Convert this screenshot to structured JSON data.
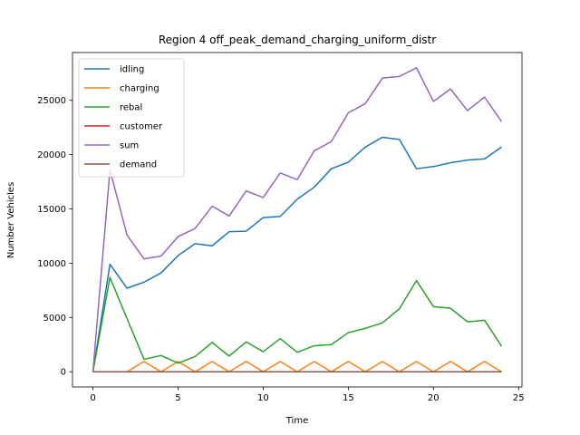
{
  "chart_data": {
    "type": "line",
    "title": "Region 4 off_peak_demand_charging_uniform_distr",
    "xlabel": "Time",
    "ylabel": "Number Vehicles",
    "xlim": [
      -1.2,
      25.2
    ],
    "ylim": [
      -1400,
      29400
    ],
    "xticks": [
      0,
      5,
      10,
      15,
      20,
      25
    ],
    "yticks": [
      0,
      5000,
      10000,
      15000,
      20000,
      25000
    ],
    "legend_position": "top-left",
    "grid": false,
    "x": [
      0,
      1,
      2,
      3,
      4,
      5,
      6,
      7,
      8,
      9,
      10,
      11,
      12,
      13,
      14,
      15,
      16,
      17,
      18,
      19,
      20,
      21,
      22,
      23,
      24
    ],
    "series": [
      {
        "name": "idling",
        "color": "#1f77b4",
        "values": [
          0,
          9900,
          7700,
          8250,
          9100,
          10700,
          11800,
          11600,
          12900,
          12950,
          14200,
          14300,
          15900,
          17000,
          18700,
          19300,
          20700,
          21600,
          21400,
          18700,
          18900,
          19250,
          19500,
          19600,
          20700
        ]
      },
      {
        "name": "charging",
        "color": "#ff7f0e",
        "values": [
          0,
          0,
          0,
          950,
          0,
          950,
          0,
          950,
          0,
          950,
          0,
          950,
          0,
          950,
          0,
          950,
          0,
          950,
          0,
          950,
          0,
          950,
          0,
          950,
          0
        ]
      },
      {
        "name": "rebal",
        "color": "#2ca02c",
        "values": [
          0,
          8700,
          4900,
          1150,
          1500,
          800,
          1400,
          2700,
          1450,
          2750,
          1850,
          3050,
          1800,
          2400,
          2500,
          3600,
          4000,
          4500,
          5800,
          8400,
          6000,
          5850,
          4600,
          4750,
          2350
        ]
      },
      {
        "name": "customer",
        "color": "#d62728",
        "values": [
          0,
          0,
          0,
          0,
          0,
          0,
          0,
          0,
          0,
          0,
          0,
          0,
          0,
          0,
          0,
          0,
          0,
          0,
          0,
          0,
          0,
          0,
          0,
          0,
          0
        ]
      },
      {
        "name": "sum",
        "color": "#9467bd",
        "values": [
          0,
          18600,
          12600,
          10400,
          10650,
          12450,
          13200,
          15250,
          14350,
          16650,
          16050,
          18300,
          17700,
          20350,
          21200,
          23850,
          24700,
          27050,
          27200,
          28000,
          24900,
          26050,
          24050,
          25300,
          23050
        ]
      },
      {
        "name": "demand",
        "color": "#8c564b",
        "values": [
          0,
          0,
          0,
          0,
          0,
          0,
          0,
          0,
          0,
          0,
          0,
          0,
          0,
          0,
          0,
          0,
          0,
          0,
          0,
          0,
          0,
          0,
          0,
          0,
          0
        ]
      }
    ]
  }
}
